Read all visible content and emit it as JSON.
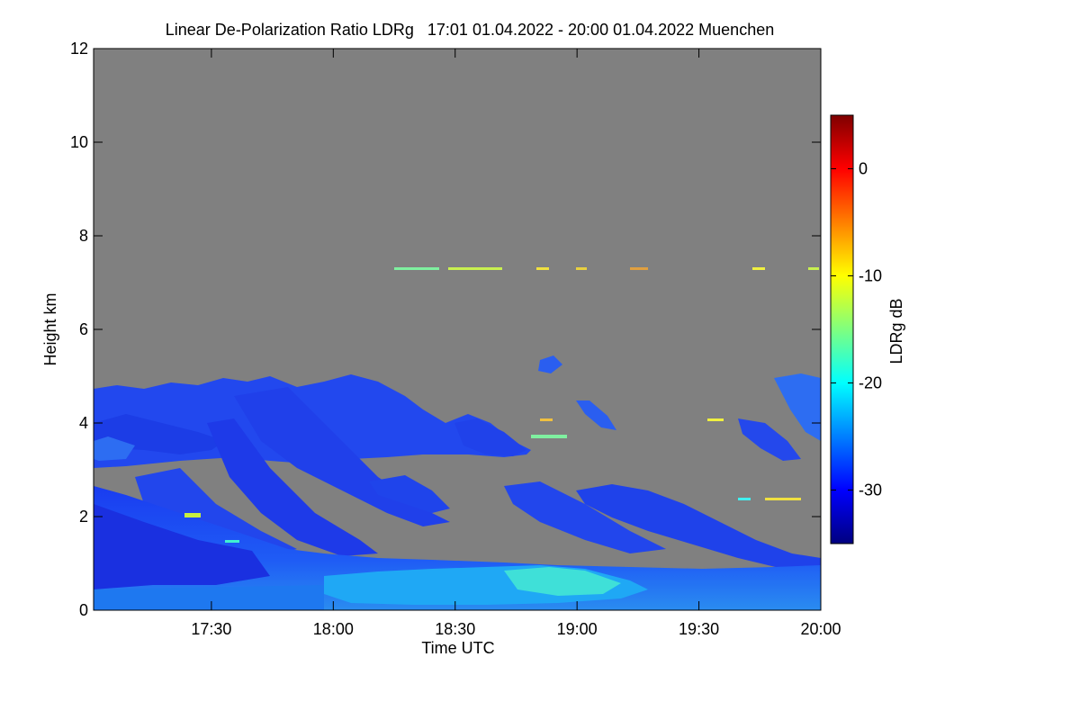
{
  "chart_data": {
    "type": "heatmap",
    "title": "Linear De-Polarization Ratio LDRg   17:01 01.04.2022 - 20:00 01.04.2022 Muenchen",
    "xlabel": "Time UTC",
    "ylabel": "Height km",
    "x_range": [
      "17:01",
      "20:00"
    ],
    "x_ticks": [
      "17:30",
      "18:00",
      "18:30",
      "19:00",
      "19:30",
      "20:00"
    ],
    "y_range": [
      0,
      12
    ],
    "y_ticks": [
      "0",
      "2",
      "4",
      "6",
      "8",
      "10",
      "12"
    ],
    "colorbar": {
      "label": "LDRg dB",
      "range": [
        -35,
        5
      ],
      "ticks": [
        "0",
        "-10",
        "-20",
        "-30"
      ],
      "tick_values": [
        0,
        -10,
        -20,
        -30
      ],
      "colors": [
        "#00007f",
        "#0000ff",
        "#007fff",
        "#00ffff",
        "#7fff7f",
        "#ffff00",
        "#ff7f00",
        "#ff0000",
        "#7f0000"
      ]
    },
    "no_data_color": "#808080",
    "features": {
      "cirrus_layer_height_km": 7.3,
      "upper_layer_top_km": 4.7,
      "boundary_layer_top_km": 1.0,
      "typical_ldr_db": -30
    }
  }
}
